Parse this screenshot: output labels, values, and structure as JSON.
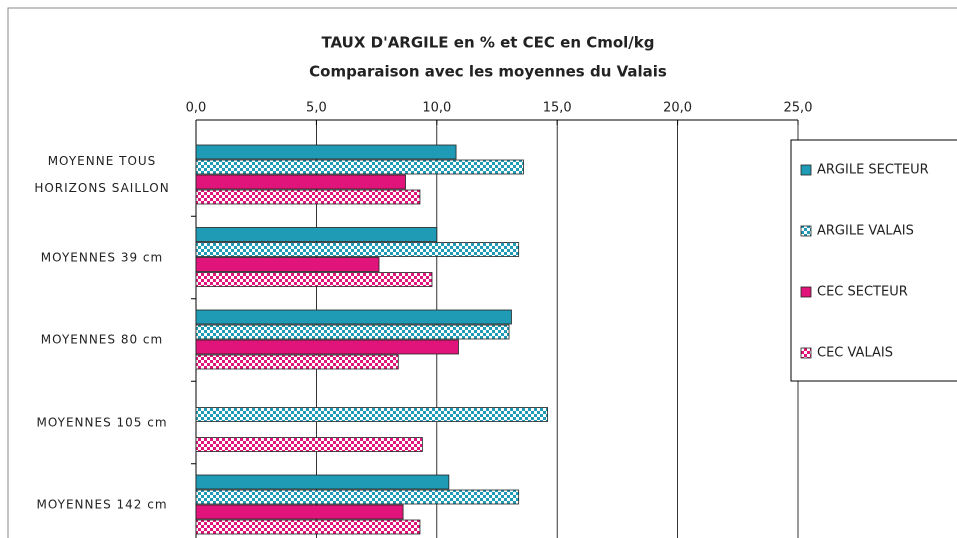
{
  "chart_data": {
    "type": "hbar",
    "title": "TAUX D'ARGILE en % et CEC en Cmol/kg",
    "subtitle": "Comparaison avec les moyennes du Valais",
    "categories": [
      "MOYENNE TOUS HORIZONS SAILLON",
      "MOYENNES  39 cm",
      "MOYENNES 80 cm",
      "MOYENNES 105 cm",
      "MOYENNES 142 cm"
    ],
    "series": [
      {
        "name": "ARGILE SECTEUR",
        "color": "#1f9bb5",
        "pattern": "solid",
        "values": [
          10.8,
          10.0,
          13.1,
          null,
          10.5
        ]
      },
      {
        "name": "ARGILE VALAIS",
        "color": "#1f9bb5",
        "pattern": "checker",
        "values": [
          13.6,
          13.4,
          13.0,
          14.6,
          13.4
        ]
      },
      {
        "name": "CEC SECTEUR",
        "color": "#e0147a",
        "pattern": "solid",
        "values": [
          8.7,
          7.6,
          10.9,
          null,
          8.6
        ]
      },
      {
        "name": "CEC VALAIS",
        "color": "#e0147a",
        "pattern": "checker",
        "values": [
          9.3,
          9.8,
          8.4,
          9.4,
          9.3
        ]
      }
    ],
    "xlim": [
      0,
      25
    ],
    "xticks": [
      {
        "value": 0,
        "label": "0,0"
      },
      {
        "value": 5,
        "label": "5,0"
      },
      {
        "value": 10,
        "label": "10,0"
      },
      {
        "value": 15,
        "label": "15,0"
      },
      {
        "value": 20,
        "label": "20,0"
      },
      {
        "value": 25,
        "label": "25,0"
      }
    ],
    "grid": true,
    "legend": "right"
  }
}
